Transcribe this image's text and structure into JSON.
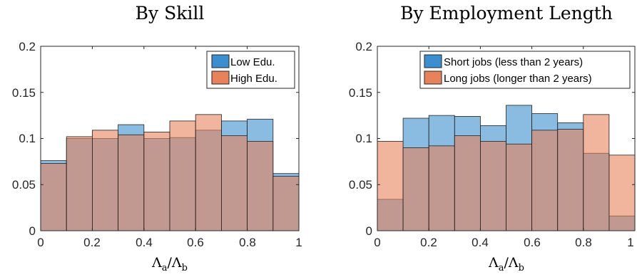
{
  "chart_data": [
    {
      "type": "bar",
      "title": "By Skill",
      "xlabel": "Λa/Λb",
      "xlabel_main_1": "Λ",
      "xlabel_sub_1": "a",
      "xlabel_slash": "/",
      "xlabel_main_2": "Λ",
      "xlabel_sub_2": "b",
      "xlim": [
        0,
        1
      ],
      "ylim": [
        0,
        0.2
      ],
      "xticks": [
        "0",
        "0.2",
        "0.4",
        "0.6",
        "0.8",
        "1"
      ],
      "xtick_values": [
        0,
        0.2,
        0.4,
        0.6,
        0.8,
        1
      ],
      "yticks": [
        "0",
        "0.05",
        "0.1",
        "0.15",
        "0.2"
      ],
      "ytick_values": [
        0,
        0.05,
        0.1,
        0.15,
        0.2
      ],
      "bin_edges": [
        0,
        0.1,
        0.2,
        0.3,
        0.4,
        0.5,
        0.6,
        0.7,
        0.8,
        0.9,
        1.0
      ],
      "legend_position": "top-right",
      "grid": false,
      "series": [
        {
          "name": "Low Edu.",
          "color": "#3c8fcf",
          "values": [
            0.076,
            0.1,
            0.1,
            0.115,
            0.1,
            0.101,
            0.109,
            0.119,
            0.121,
            0.062
          ]
        },
        {
          "name": "High Edu.",
          "color": "#e8825c",
          "values": [
            0.073,
            0.102,
            0.109,
            0.104,
            0.107,
            0.119,
            0.126,
            0.103,
            0.097,
            0.059
          ]
        }
      ]
    },
    {
      "type": "bar",
      "title": "By Employment Length",
      "xlabel": "Λa/Λb",
      "xlabel_main_1": "Λ",
      "xlabel_sub_1": "a",
      "xlabel_slash": "/",
      "xlabel_main_2": "Λ",
      "xlabel_sub_2": "b",
      "xlim": [
        0,
        1
      ],
      "ylim": [
        0,
        0.2
      ],
      "xticks": [
        "0",
        "0.2",
        "0.4",
        "0.6",
        "0.8",
        "1"
      ],
      "xtick_values": [
        0,
        0.2,
        0.4,
        0.6,
        0.8,
        1
      ],
      "yticks": [
        "0",
        "0.05",
        "0.1",
        "0.15",
        "0.2"
      ],
      "ytick_values": [
        0,
        0.05,
        0.1,
        0.15,
        0.2
      ],
      "bin_edges": [
        0,
        0.1,
        0.2,
        0.3,
        0.4,
        0.5,
        0.6,
        0.7,
        0.8,
        0.9,
        1.0
      ],
      "legend_position": "top-right",
      "grid": false,
      "series": [
        {
          "name": "Short jobs (less than 2 years)",
          "color": "#3c8fcf",
          "values": [
            0.034,
            0.122,
            0.125,
            0.124,
            0.114,
            0.136,
            0.127,
            0.117,
            0.084,
            0.016
          ]
        },
        {
          "name": "Long jobs (longer than 2 years)",
          "color": "#e8825c",
          "values": [
            0.097,
            0.09,
            0.092,
            0.103,
            0.097,
            0.094,
            0.109,
            0.11,
            0.126,
            0.082
          ]
        }
      ]
    }
  ]
}
